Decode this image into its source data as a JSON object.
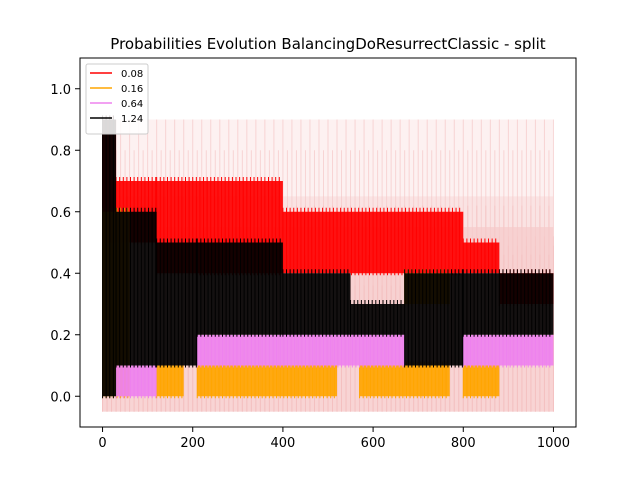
{
  "chart_data": {
    "type": "line",
    "title": "Probabilities Evolution BalancingDoResurrectClassic  - split",
    "xlabel": "",
    "ylabel": "",
    "xlim": [
      -50,
      1050
    ],
    "ylim": [
      -0.1,
      1.1
    ],
    "xticks": [
      0,
      200,
      400,
      600,
      800,
      1000
    ],
    "yticks": [
      0.0,
      0.2,
      0.4,
      0.6,
      0.8,
      1.0
    ],
    "xtick_labels": [
      "0",
      "200",
      "400",
      "600",
      "800",
      "1000"
    ],
    "ytick_labels": [
      "0.0",
      "0.2",
      "0.4",
      "0.6",
      "0.8",
      "1.0"
    ],
    "legend_position": "top-left",
    "grid": false,
    "series": [
      {
        "name": "0.08",
        "color": "#ff0000",
        "segments": [
          {
            "x0": 0,
            "x1": 30,
            "lo": 0.5,
            "hi": 0.9
          },
          {
            "x0": 30,
            "x1": 120,
            "lo": 0.5,
            "hi": 0.7
          },
          {
            "x0": 120,
            "x1": 400,
            "lo": 0.4,
            "hi": 0.7
          },
          {
            "x0": 400,
            "x1": 560,
            "lo": 0.4,
            "hi": 0.6
          },
          {
            "x0": 560,
            "x1": 800,
            "lo": 0.4,
            "hi": 0.6
          },
          {
            "x0": 800,
            "x1": 880,
            "lo": 0.4,
            "hi": 0.5
          },
          {
            "x0": 880,
            "x1": 920,
            "lo": 0.3,
            "hi": 0.4
          },
          {
            "x0": 920,
            "x1": 1000,
            "lo": 0.3,
            "hi": 0.4
          }
        ],
        "band": {
          "lo": 0.3,
          "hi": 0.9
        }
      },
      {
        "name": "0.16",
        "color": "#ffa500",
        "segments": [
          {
            "x0": 0,
            "x1": 60,
            "lo": 0.0,
            "hi": 0.6
          },
          {
            "x0": 120,
            "x1": 180,
            "lo": 0.0,
            "hi": 0.1
          },
          {
            "x0": 210,
            "x1": 520,
            "lo": 0.0,
            "hi": 0.1
          },
          {
            "x0": 570,
            "x1": 770,
            "lo": 0.0,
            "hi": 0.1
          },
          {
            "x0": 670,
            "x1": 770,
            "lo": 0.3,
            "hi": 0.4
          },
          {
            "x0": 800,
            "x1": 880,
            "lo": 0.0,
            "hi": 0.1
          }
        ],
        "band": {
          "lo": -0.05,
          "hi": 0.65
        }
      },
      {
        "name": "0.64",
        "color": "#ee82ee",
        "segments": [
          {
            "x0": 30,
            "x1": 120,
            "lo": 0.0,
            "hi": 0.1
          },
          {
            "x0": 210,
            "x1": 670,
            "lo": 0.1,
            "hi": 0.2
          },
          {
            "x0": 800,
            "x1": 1000,
            "lo": 0.1,
            "hi": 0.2
          }
        ],
        "band": {
          "lo": -0.05,
          "hi": 0.55
        }
      },
      {
        "name": "1.24",
        "color": "#000000",
        "segments": [
          {
            "x0": 0,
            "x1": 30,
            "lo": 0.0,
            "hi": 0.9
          },
          {
            "x0": 30,
            "x1": 120,
            "lo": 0.1,
            "hi": 0.6
          },
          {
            "x0": 120,
            "x1": 210,
            "lo": 0.1,
            "hi": 0.5
          },
          {
            "x0": 210,
            "x1": 400,
            "lo": 0.2,
            "hi": 0.5
          },
          {
            "x0": 400,
            "x1": 550,
            "lo": 0.2,
            "hi": 0.4
          },
          {
            "x0": 550,
            "x1": 670,
            "lo": 0.2,
            "hi": 0.3
          },
          {
            "x0": 670,
            "x1": 800,
            "lo": 0.1,
            "hi": 0.4
          },
          {
            "x0": 800,
            "x1": 1000,
            "lo": 0.2,
            "hi": 0.4
          }
        ],
        "band": {
          "lo": -0.05,
          "hi": 0.55
        }
      }
    ]
  }
}
